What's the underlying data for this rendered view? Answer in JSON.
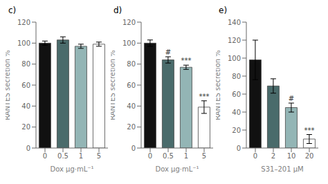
{
  "chart_data": [
    {
      "type": "bar",
      "title": "c)",
      "categories": [
        "0",
        "0.5",
        "1",
        "5"
      ],
      "values": [
        100,
        103,
        97,
        99
      ],
      "errors": [
        2,
        3,
        2,
        2
      ],
      "colors": [
        "#111111",
        "#4a6b6b",
        "#93b5b5",
        "#ffffff"
      ],
      "xlabel": "Dox μg·mL⁻¹",
      "ylabel": "RANTES secretion %",
      "ylim": [
        0,
        120
      ],
      "yticks": [
        0,
        20,
        40,
        60,
        80,
        100,
        120
      ],
      "grid": false
    },
    {
      "type": "bar",
      "title": "d)",
      "categories": [
        "0",
        "0.5",
        "1",
        "5"
      ],
      "values": [
        100,
        84,
        77,
        39
      ],
      "errors": [
        3,
        3,
        2,
        6
      ],
      "annotations": [
        null,
        "#",
        "***",
        "***"
      ],
      "colors": [
        "#111111",
        "#4a6b6b",
        "#93b5b5",
        "#ffffff"
      ],
      "xlabel": "Dox μg·mL⁻¹",
      "ylabel": "RANTES secretion %",
      "ylim": [
        0,
        120
      ],
      "yticks": [
        0,
        20,
        40,
        60,
        80,
        100,
        120
      ],
      "grid": false
    },
    {
      "type": "bar",
      "title": "e)",
      "categories": [
        "0",
        "2",
        "10",
        "20"
      ],
      "values": [
        98,
        69,
        45,
        10
      ],
      "errors": [
        22,
        8,
        5,
        5
      ],
      "annotations": [
        null,
        null,
        "#",
        "***"
      ],
      "colors": [
        "#111111",
        "#4a6b6b",
        "#93b5b5",
        "#ffffff"
      ],
      "xlabel": "S31–201 μM",
      "ylabel": "RANTES secretion %",
      "ylim": [
        0,
        140
      ],
      "yticks": [
        0,
        20,
        40,
        60,
        80,
        100,
        120,
        140
      ],
      "grid": false
    }
  ]
}
